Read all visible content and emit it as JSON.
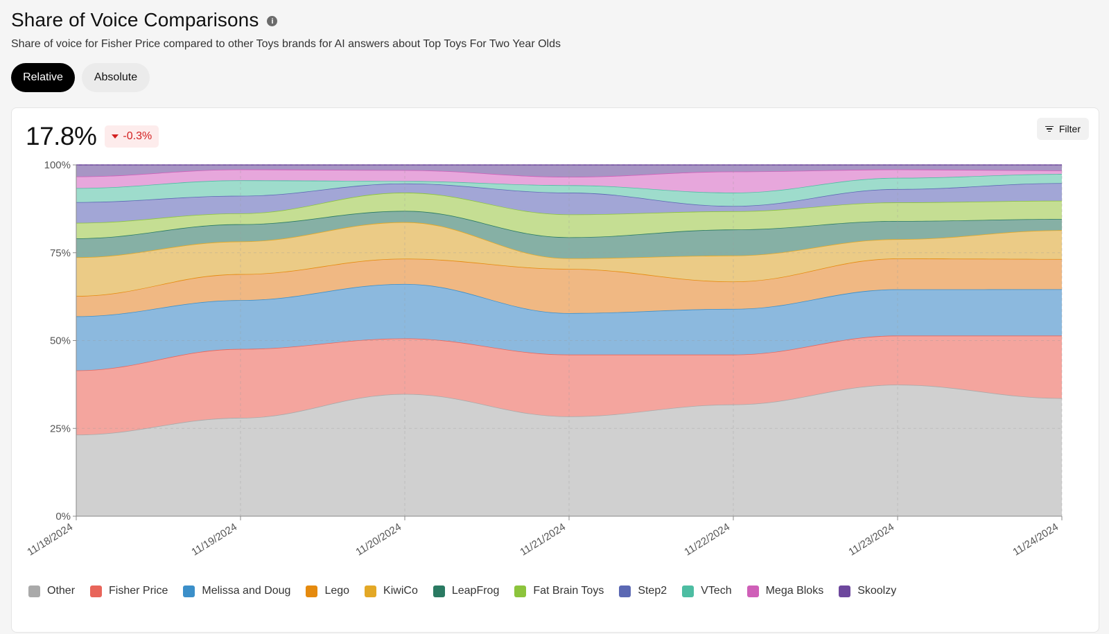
{
  "header": {
    "title": "Share of Voice Comparisons",
    "info_icon": "info-icon",
    "subtitle": "Share of voice for Fisher Price compared to other Toys brands for AI answers about Top Toys For Two Year Olds"
  },
  "toggle": {
    "relative_label": "Relative",
    "absolute_label": "Absolute",
    "selected": "Relative"
  },
  "metric": {
    "value": "17.8%",
    "delta": "-0.3%",
    "delta_direction": "down",
    "delta_color": "#d32020"
  },
  "filter": {
    "label": "Filter",
    "icon": "filter-lines-icon"
  },
  "chart_data": {
    "type": "area",
    "stacked": true,
    "normalized": true,
    "categories": [
      "11/18/2024",
      "11/19/2024",
      "11/20/2024",
      "11/21/2024",
      "11/22/2024",
      "11/23/2024",
      "11/24/2024"
    ],
    "y_ticks": [
      "0%",
      "25%",
      "50%",
      "75%",
      "100%"
    ],
    "ylim": [
      0,
      100
    ],
    "grid": true,
    "legend_position": "bottom",
    "series": [
      {
        "name": "Other",
        "color": "#a9a9a9",
        "fill": "#d0d0d0",
        "values": [
          23.2,
          28.0,
          34.8,
          28.4,
          31.8,
          37.5,
          33.6
        ]
      },
      {
        "name": "Fisher Price",
        "color": "#e8655a",
        "fill": "#f4a59e",
        "values": [
          18.3,
          19.6,
          15.8,
          17.6,
          14.2,
          14.0,
          17.8
        ]
      },
      {
        "name": "Melissa and Doug",
        "color": "#3b8fc9",
        "fill": "#8cb9de",
        "values": [
          15.4,
          13.9,
          15.5,
          11.8,
          13.0,
          13.2,
          13.2
        ]
      },
      {
        "name": "Lego",
        "color": "#e58a0e",
        "fill": "#f0b883",
        "values": [
          5.8,
          7.4,
          7.2,
          12.6,
          7.8,
          8.8,
          8.6
        ]
      },
      {
        "name": "KiwiCo",
        "color": "#e3a826",
        "fill": "#ebcb86",
        "values": [
          11.0,
          9.3,
          10.4,
          3.0,
          7.4,
          5.5,
          8.2
        ]
      },
      {
        "name": "LeapFrog",
        "color": "#2a7a62",
        "fill": "#86b0a5",
        "values": [
          5.4,
          4.9,
          3.2,
          6.0,
          7.4,
          5.2,
          3.2
        ]
      },
      {
        "name": "Fat Brain Toys",
        "color": "#8cc43c",
        "fill": "#c5de93",
        "values": [
          4.4,
          3.1,
          5.2,
          6.5,
          5.2,
          5.3,
          5.2
        ]
      },
      {
        "name": "Step2",
        "color": "#5b68b3",
        "fill": "#a2a6d6",
        "values": [
          5.9,
          5.0,
          2.6,
          6.2,
          1.5,
          3.8,
          5.0
        ]
      },
      {
        "name": "VTech",
        "color": "#4dbda2",
        "fill": "#9edccc",
        "values": [
          4.0,
          4.4,
          0.7,
          2.1,
          3.8,
          3.2,
          2.6
        ]
      },
      {
        "name": "Mega Bloks",
        "color": "#cf5fb8",
        "fill": "#e7a7dc",
        "values": [
          3.3,
          3.1,
          3.1,
          2.4,
          6.0,
          2.4,
          1.0
        ]
      },
      {
        "name": "Skoolzy",
        "color": "#6d479d",
        "fill": "#a795c4",
        "values": [
          3.3,
          1.3,
          1.5,
          3.4,
          1.9,
          1.3,
          1.6
        ]
      }
    ]
  }
}
